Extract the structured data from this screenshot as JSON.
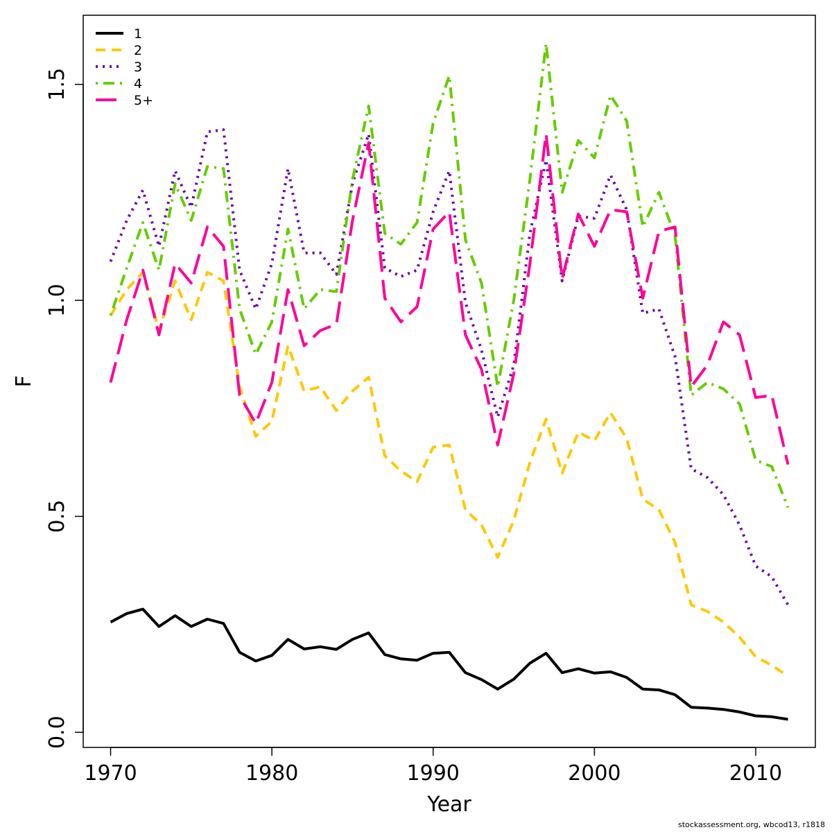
{
  "credit": "stockassessment.org, wbcod13, r1818",
  "chart_data": {
    "type": "line",
    "xlabel": "Year",
    "ylabel": "F",
    "xlim": [
      1968.3,
      2013.7
    ],
    "ylim": [
      -0.035,
      1.66
    ],
    "xticks": [
      1970,
      1980,
      1990,
      2000,
      2010
    ],
    "yticks": [
      0.0,
      0.5,
      1.0,
      1.5
    ],
    "ytick_labels": [
      "0.0",
      "0.5",
      "1.0",
      "1.5"
    ],
    "grid": false,
    "legend_position": "top-left",
    "x": [
      1970,
      1971,
      1972,
      1973,
      1974,
      1975,
      1976,
      1977,
      1978,
      1979,
      1980,
      1981,
      1982,
      1983,
      1984,
      1985,
      1986,
      1987,
      1988,
      1989,
      1990,
      1991,
      1992,
      1993,
      1994,
      1995,
      1996,
      1997,
      1998,
      1999,
      2000,
      2001,
      2002,
      2003,
      2004,
      2005,
      2006,
      2007,
      2008,
      2009,
      2010,
      2011,
      2012
    ],
    "series": [
      {
        "name": "1",
        "color": "#000000",
        "dash": "solid",
        "values": [
          0.255,
          0.275,
          0.285,
          0.245,
          0.27,
          0.245,
          0.262,
          0.252,
          0.185,
          0.165,
          0.178,
          0.215,
          0.193,
          0.198,
          0.192,
          0.215,
          0.23,
          0.18,
          0.17,
          0.167,
          0.183,
          0.185,
          0.138,
          0.122,
          0.1,
          0.123,
          0.16,
          0.183,
          0.138,
          0.147,
          0.137,
          0.14,
          0.127,
          0.1,
          0.098,
          0.087,
          0.058,
          0.056,
          0.053,
          0.047,
          0.038,
          0.036,
          0.03
        ]
      },
      {
        "name": "2",
        "color": "#ffc800",
        "dash": "dashed",
        "values": [
          0.965,
          1.025,
          1.065,
          0.93,
          1.045,
          0.955,
          1.065,
          1.045,
          0.8,
          0.685,
          0.72,
          0.895,
          0.79,
          0.8,
          0.745,
          0.79,
          0.822,
          0.64,
          0.605,
          0.58,
          0.66,
          0.665,
          0.515,
          0.48,
          0.405,
          0.49,
          0.625,
          0.725,
          0.6,
          0.695,
          0.675,
          0.74,
          0.68,
          0.54,
          0.515,
          0.44,
          0.295,
          0.28,
          0.255,
          0.22,
          0.175,
          0.155,
          0.13
        ]
      },
      {
        "name": "3",
        "color": "#6a00a8",
        "dash": "dotted",
        "values": [
          1.09,
          1.185,
          1.255,
          1.125,
          1.3,
          1.215,
          1.39,
          1.395,
          1.07,
          0.98,
          1.085,
          1.305,
          1.11,
          1.11,
          1.06,
          1.27,
          1.385,
          1.075,
          1.055,
          1.07,
          1.205,
          1.3,
          0.995,
          0.885,
          0.73,
          0.85,
          1.155,
          1.325,
          1.045,
          1.195,
          1.19,
          1.29,
          1.21,
          0.97,
          0.98,
          0.87,
          0.61,
          0.59,
          0.55,
          0.48,
          0.385,
          0.36,
          0.295
        ]
      },
      {
        "name": "4",
        "color": "#66cc00",
        "dash": "dotdash",
        "values": [
          0.965,
          1.075,
          1.18,
          1.07,
          1.27,
          1.185,
          1.31,
          1.305,
          0.98,
          0.875,
          0.95,
          1.165,
          0.98,
          1.025,
          1.02,
          1.28,
          1.45,
          1.155,
          1.13,
          1.18,
          1.41,
          1.52,
          1.14,
          1.04,
          0.8,
          1.0,
          1.28,
          1.595,
          1.25,
          1.37,
          1.33,
          1.475,
          1.415,
          1.17,
          1.25,
          1.15,
          0.78,
          0.81,
          0.795,
          0.76,
          0.63,
          0.615,
          0.52
        ]
      },
      {
        "name": "5+",
        "color": "#ff0099",
        "dash": "longdash",
        "values": [
          0.81,
          0.955,
          1.07,
          0.92,
          1.085,
          1.04,
          1.17,
          1.125,
          0.78,
          0.715,
          0.81,
          1.025,
          0.895,
          0.93,
          0.945,
          1.185,
          1.365,
          1.005,
          0.95,
          0.985,
          1.165,
          1.205,
          0.92,
          0.84,
          0.665,
          0.83,
          1.085,
          1.385,
          1.05,
          1.2,
          1.125,
          1.21,
          1.205,
          1.005,
          1.16,
          1.17,
          0.8,
          0.85,
          0.95,
          0.92,
          0.775,
          0.78,
          0.62
        ]
      }
    ]
  }
}
